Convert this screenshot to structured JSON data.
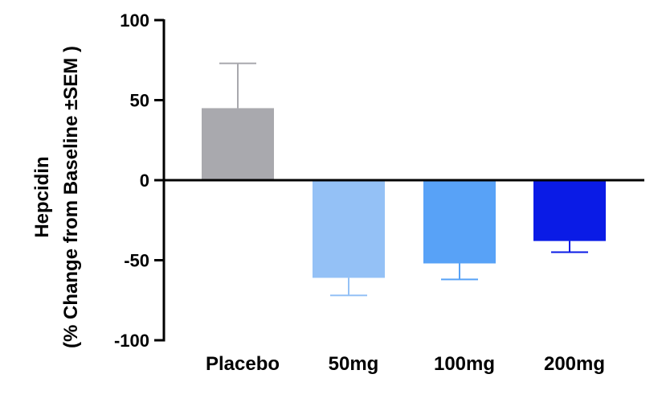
{
  "chart_data": {
    "type": "bar",
    "title": "",
    "xlabel": "",
    "ylabel_line1": "Hepcidin",
    "ylabel_line2": "(% Change from Baseline ±SEM )",
    "categories": [
      "Placebo",
      "50mg",
      "100mg",
      "200mg"
    ],
    "values": [
      45,
      -61,
      -52,
      -38
    ],
    "error_sem": [
      28,
      11,
      10,
      7
    ],
    "colors": [
      "#a9a9ae",
      "#94c1f6",
      "#58a2f7",
      "#0a1be6"
    ],
    "ylim": [
      -100,
      100
    ],
    "yticks": [
      100,
      50,
      0,
      -50,
      -100
    ],
    "ytick_labels": [
      "100",
      "50",
      "0",
      "-50",
      "-100"
    ],
    "grid": false,
    "legend": "none"
  }
}
